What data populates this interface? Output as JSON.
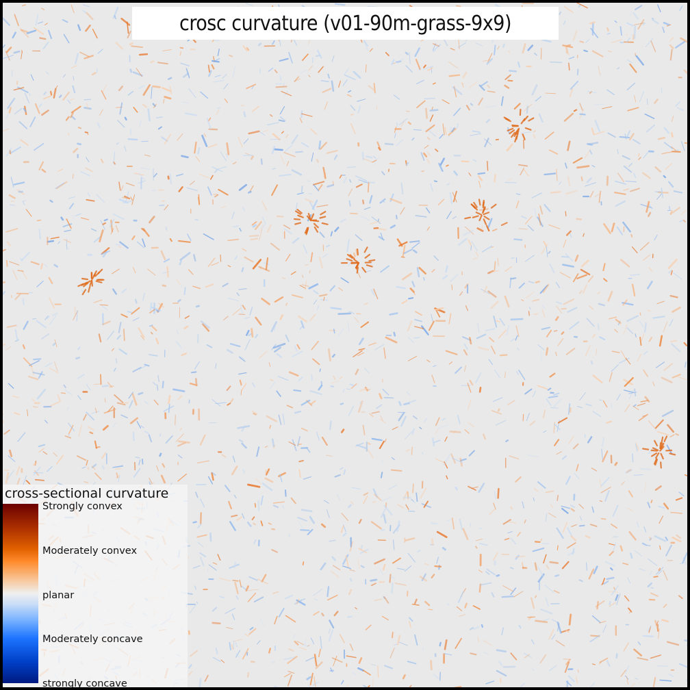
{
  "title": "crosc curvature (v01-90m-grass-9x9)",
  "legend": {
    "title": "cross-sectional curvature",
    "labels": [
      "Strongly convex",
      "Moderately convex",
      "planar",
      "Moderately concave",
      "strongly concave"
    ]
  },
  "colors": {
    "background": "#e9e9e9",
    "convex": "#e06000",
    "concave": "#1d74ff",
    "strongly_convex": "#6a0000",
    "strongly_concave": "#001a80"
  }
}
